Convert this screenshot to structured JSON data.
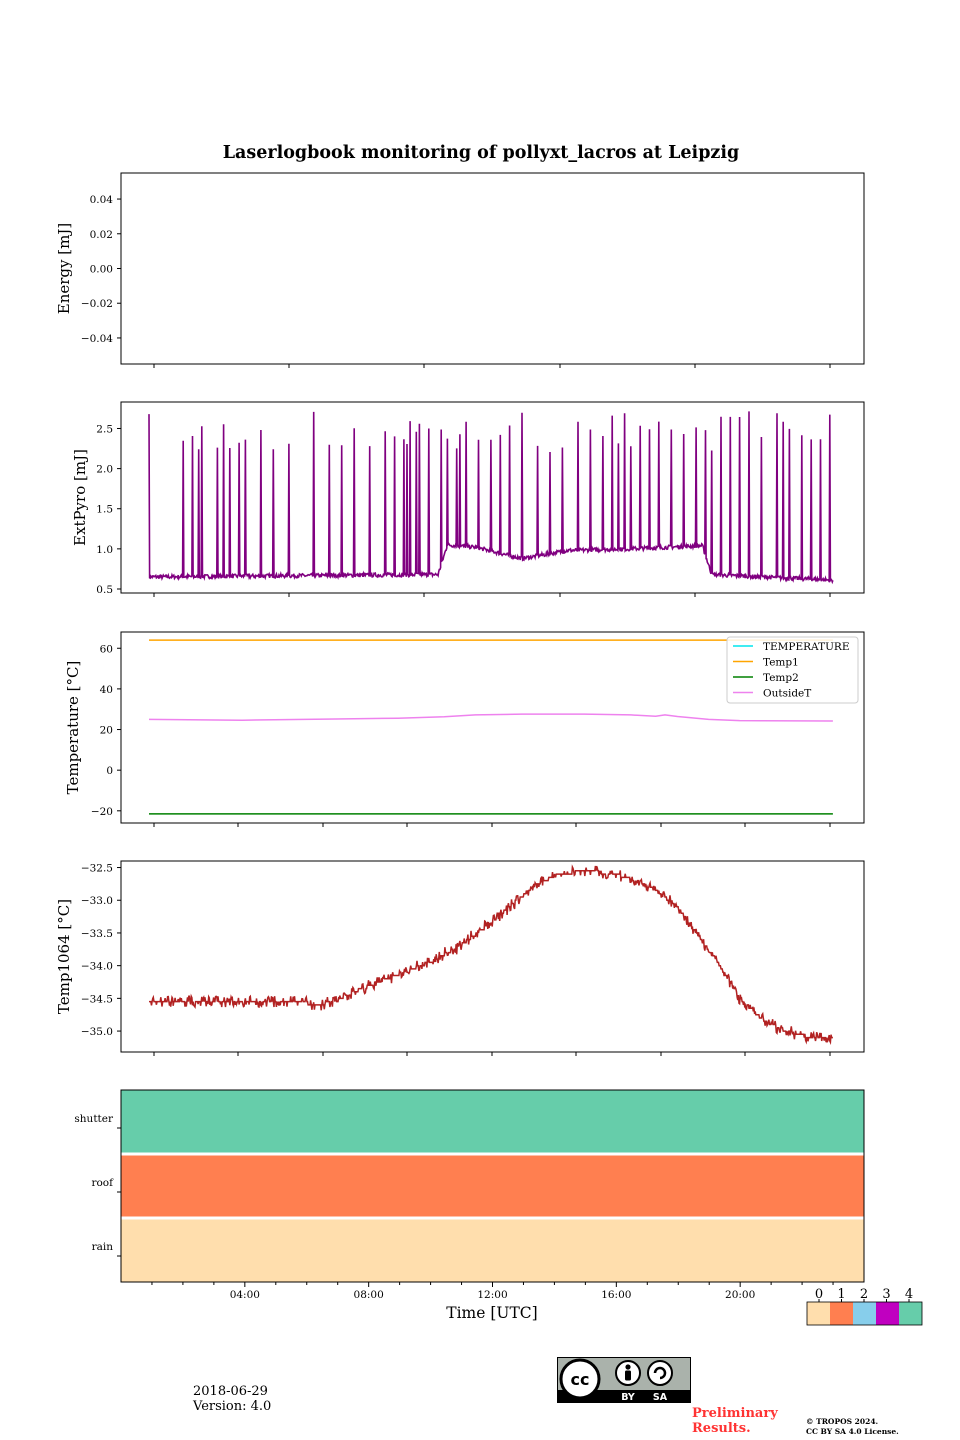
{
  "title": "Laserlogbook monitoring of pollyxt_lacros at Leipzig",
  "chart_data": [
    {
      "type": "line",
      "name": "energy",
      "ylabel": "Energy [mJ]",
      "ylim": [
        -0.055,
        0.055
      ],
      "yticks": [
        0.04,
        0.02,
        0.0,
        -0.02,
        -0.04
      ],
      "ytick_labels": [
        "0.04",
        "0.02",
        "0.00",
        "−0.02",
        "−0.04"
      ],
      "series": []
    },
    {
      "type": "line",
      "name": "extpyro",
      "ylabel": "ExtPyro [mJ]",
      "ylim": [
        0.45,
        2.83
      ],
      "yticks": [
        2.5,
        2.0,
        1.5,
        1.0,
        0.5
      ],
      "ytick_labels": [
        "2.5",
        "2.0",
        "1.5",
        "1.0",
        "0.5"
      ],
      "x_range_hours": [
        1.0,
        23.0
      ],
      "baseline": [
        [
          1.0,
          0.65
        ],
        [
          10.3,
          0.68
        ],
        [
          10.6,
          1.05
        ],
        [
          11.5,
          1.02
        ],
        [
          13.0,
          0.88
        ],
        [
          14.5,
          0.98
        ],
        [
          16.5,
          1.0
        ],
        [
          18.8,
          1.04
        ],
        [
          19.1,
          0.68
        ],
        [
          23.0,
          0.61
        ]
      ],
      "spike_times": [
        1.0,
        2.1,
        2.4,
        2.6,
        2.7,
        3.2,
        3.4,
        3.6,
        3.9,
        4.1,
        4.6,
        5.0,
        5.5,
        6.3,
        6.8,
        7.2,
        7.6,
        8.1,
        8.6,
        8.9,
        9.2,
        9.3,
        9.4,
        9.6,
        9.7,
        10.0,
        10.4,
        10.6,
        10.9,
        11.0,
        11.2,
        11.6,
        12.0,
        12.3,
        12.6,
        13.0,
        13.5,
        13.9,
        14.3,
        14.8,
        15.2,
        15.6,
        15.9,
        16.1,
        16.3,
        16.5,
        16.8,
        17.1,
        17.4,
        17.8,
        18.2,
        18.6,
        18.9,
        19.1,
        19.4,
        19.7,
        20.0,
        20.3,
        20.7,
        21.2,
        21.4,
        21.6,
        22.0,
        22.3,
        22.6,
        22.9
      ],
      "spike_peak_range": [
        2.2,
        2.72
      ],
      "series_color": "#800080"
    },
    {
      "type": "line",
      "name": "temperature",
      "ylabel": "Temperature [°C]",
      "ylim": [
        -26,
        68
      ],
      "yticks": [
        60,
        40,
        20,
        0,
        -20
      ],
      "ytick_labels": [
        "60",
        "40",
        "20",
        "0",
        "−20"
      ],
      "legend_position": "top-right",
      "series": [
        {
          "name": "TEMPERATURE",
          "color": "#00e5ee",
          "points": []
        },
        {
          "name": "Temp1",
          "color": "#ffa500",
          "points": [
            [
              1.0,
              64
            ],
            [
              23.0,
              64
            ]
          ]
        },
        {
          "name": "Temp2",
          "color": "#008000",
          "points": [
            [
              1.0,
              -21.5
            ],
            [
              23.0,
              -21.5
            ]
          ]
        },
        {
          "name": "OutsideT",
          "color": "#ee82ee",
          "points": [
            [
              1.0,
              25.0
            ],
            [
              4.0,
              24.6
            ],
            [
              7.0,
              25.2
            ],
            [
              9.0,
              25.6
            ],
            [
              10.5,
              26.3
            ],
            [
              11.5,
              27.2
            ],
            [
              13.0,
              27.6
            ],
            [
              15.0,
              27.6
            ],
            [
              16.5,
              27.2
            ],
            [
              17.3,
              26.5
            ],
            [
              17.6,
              27.2
            ],
            [
              18.0,
              26.4
            ],
            [
              19.0,
              25.0
            ],
            [
              20.0,
              24.4
            ],
            [
              23.0,
              24.2
            ]
          ]
        }
      ]
    },
    {
      "type": "line",
      "name": "temp1064",
      "ylabel": "Temp1064 [°C]",
      "ylim": [
        -35.32,
        -32.4
      ],
      "yticks": [
        -32.5,
        -33.0,
        -33.5,
        -34.0,
        -34.5,
        -35.0
      ],
      "ytick_labels": [
        "−32.5",
        "−33.0",
        "−33.5",
        "−34.0",
        "−34.5",
        "−35.0"
      ],
      "series_color": "#b22222",
      "points": [
        [
          1.0,
          -34.55
        ],
        [
          5.8,
          -34.55
        ],
        [
          6.4,
          -34.6
        ],
        [
          7.0,
          -34.55
        ],
        [
          7.6,
          -34.4
        ],
        [
          8.4,
          -34.25
        ],
        [
          9.2,
          -34.1
        ],
        [
          10.0,
          -33.95
        ],
        [
          11.0,
          -33.7
        ],
        [
          12.0,
          -33.35
        ],
        [
          12.7,
          -33.05
        ],
        [
          13.5,
          -32.75
        ],
        [
          14.2,
          -32.6
        ],
        [
          15.0,
          -32.55
        ],
        [
          16.0,
          -32.6
        ],
        [
          16.7,
          -32.7
        ],
        [
          17.3,
          -32.85
        ],
        [
          18.0,
          -33.1
        ],
        [
          18.6,
          -33.5
        ],
        [
          19.3,
          -33.95
        ],
        [
          20.0,
          -34.5
        ],
        [
          20.8,
          -34.85
        ],
        [
          21.5,
          -35.0
        ],
        [
          22.4,
          -35.12
        ],
        [
          23.0,
          -35.1
        ]
      ],
      "noise_amplitude": 0.06
    },
    {
      "type": "heatmap",
      "name": "status",
      "rows": [
        {
          "label": "shutter",
          "value": 4,
          "color": "#66cdaa"
        },
        {
          "label": "roof",
          "value": 1,
          "color": "#ff7f50"
        },
        {
          "label": "rain",
          "value": 0,
          "color": "#ffdead"
        }
      ],
      "xlabel": "Time [UTC]",
      "xticks_hours": [
        4,
        8,
        12,
        16,
        20
      ],
      "xtick_labels": [
        "04:00",
        "08:00",
        "12:00",
        "16:00",
        "20:00"
      ],
      "xlim_hours": [
        0,
        24
      ],
      "colorbar": {
        "ticks": [
          "0",
          "1",
          "2",
          "3",
          "4"
        ],
        "colors": [
          "#ffdead",
          "#ff7f50",
          "#87ceeb",
          "#c000c0",
          "#66cdaa"
        ]
      }
    }
  ],
  "footer": {
    "date": "2018-06-29",
    "version": "Version: 4.0",
    "preliminary_line1": "Preliminary",
    "preliminary_line2": "Results.",
    "copyright_line1": "© TROPOS 2024.",
    "copyright_line2": "CC BY SA 4.0 License.",
    "license_by": "BY",
    "license_sa": "SA"
  }
}
